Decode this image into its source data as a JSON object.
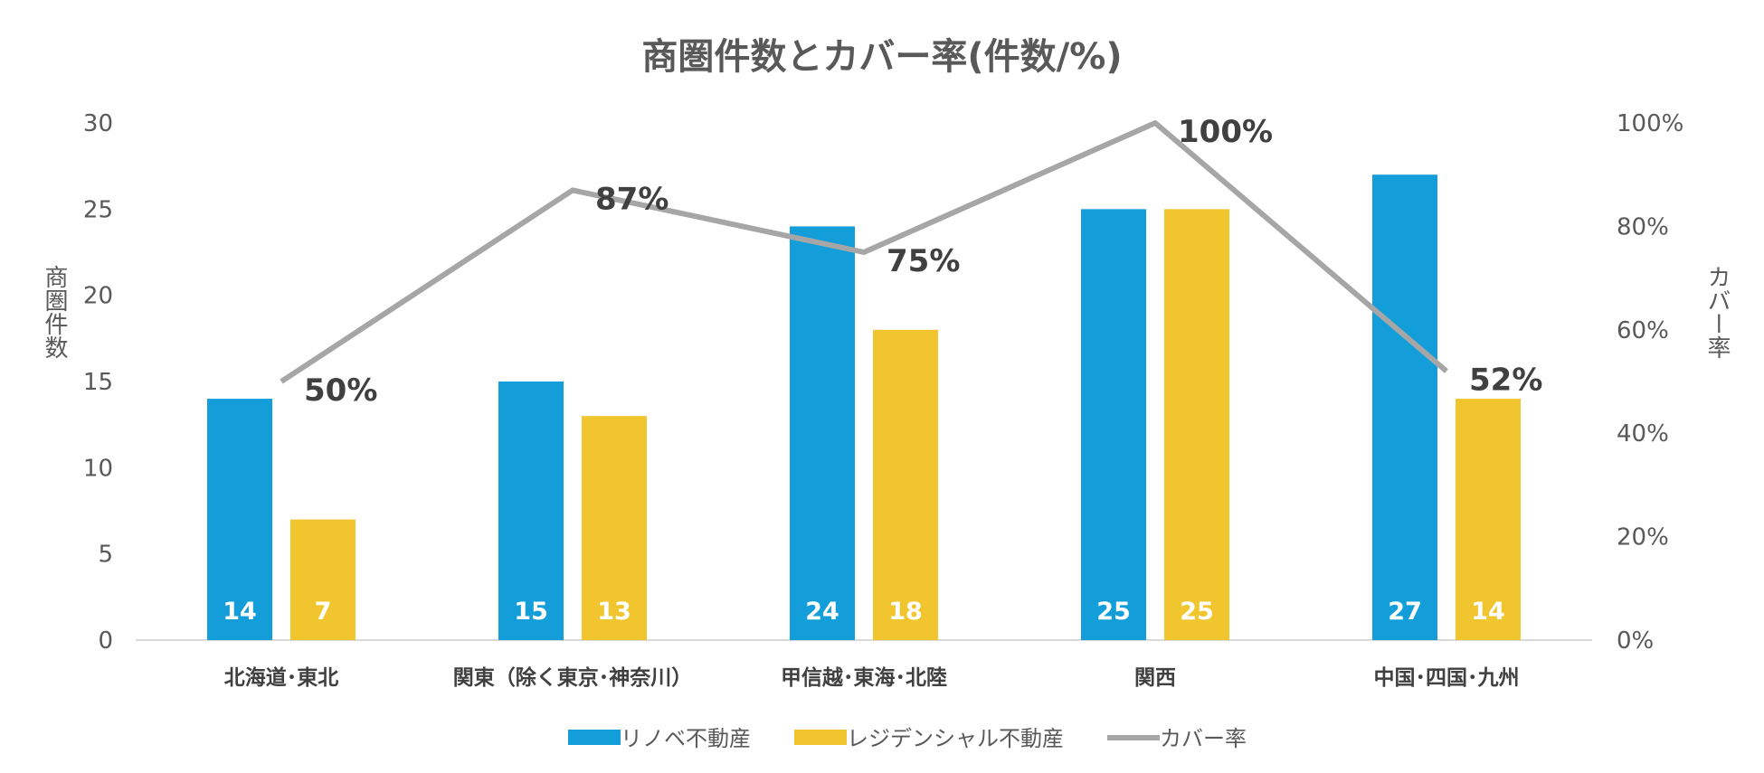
{
  "chart_data": {
    "type": "bar",
    "title": "商圏件数とカバー率(件数/%)",
    "categories": [
      "北海道･東北",
      "関東（除く東京･神奈川）",
      "甲信越･東海･北陸",
      "関西",
      "中国･四国･九州"
    ],
    "series": [
      {
        "name": "リノベ不動産",
        "kind": "bar",
        "axis": "left",
        "color": "#139ED9",
        "values": [
          14,
          15,
          24,
          25,
          27
        ]
      },
      {
        "name": "レジデンシャル不動産",
        "kind": "bar",
        "axis": "left",
        "color": "#F0C52E",
        "values": [
          7,
          13,
          18,
          25,
          14
        ]
      },
      {
        "name": "カバー率",
        "kind": "line",
        "axis": "right",
        "color": "#A6A6A6",
        "values": [
          50,
          87,
          75,
          100,
          52
        ]
      }
    ],
    "ylabel": "商圏件数",
    "y2label": "カバー率",
    "ylim": [
      0,
      30
    ],
    "yticks": [
      0,
      5,
      10,
      15,
      20,
      25,
      30
    ],
    "y2lim": [
      0,
      100
    ],
    "y2ticks": [
      "0%",
      "20%",
      "40%",
      "60%",
      "80%",
      "100%"
    ],
    "line_labels": [
      "50%",
      "87%",
      "75%",
      "100%",
      "52%"
    ],
    "legend_position": "bottom",
    "grid": false
  }
}
